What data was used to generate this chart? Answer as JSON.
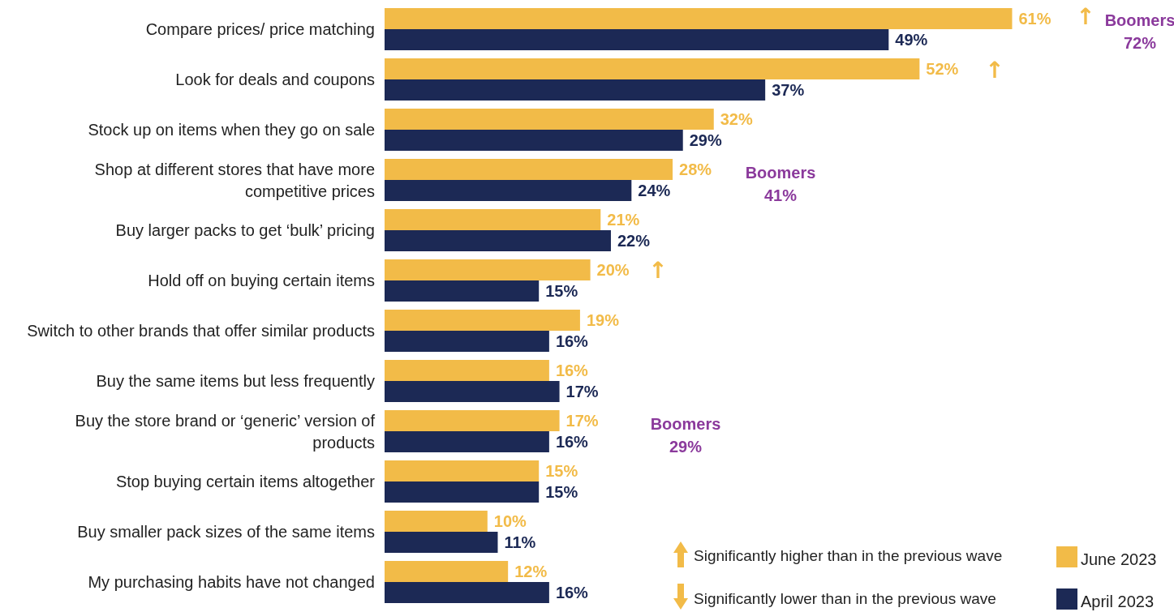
{
  "chart_data": {
    "type": "bar",
    "orientation": "horizontal",
    "legend": "bottom right",
    "categories": [
      "Compare prices/ price matching",
      "Look for deals and coupons",
      "Stock up on items when they go on sale",
      "Shop at different stores that have more competitive prices",
      "Buy larger packs to get ‘bulk’ pricing",
      "Hold off on buying certain items",
      "Switch to other brands that offer similar products",
      "Buy the same items but less frequently",
      "Buy the store brand or ‘generic’ version of products",
      "Stop buying certain items altogether",
      "Buy smaller pack sizes of the same items",
      "My purchasing habits have not changed"
    ],
    "series": [
      {
        "name": "June 2023",
        "color": "#f2bb48",
        "values": [
          61,
          52,
          32,
          28,
          21,
          20,
          19,
          16,
          17,
          15,
          10,
          12
        ],
        "value_labels": [
          "61%",
          "52%",
          "32%",
          "28%",
          "21%",
          "20%",
          "19%",
          "16%",
          "17%",
          "15%",
          "10%",
          "12%"
        ]
      },
      {
        "name": "April 2023",
        "color": "#1c2955",
        "values": [
          49,
          37,
          29,
          24,
          22,
          15,
          16,
          17,
          16,
          15,
          11,
          16
        ],
        "value_labels": [
          "49%",
          "37%",
          "29%",
          "24%",
          "22%",
          "15%",
          "16%",
          "17%",
          "16%",
          "15%",
          "11%",
          "16%"
        ]
      }
    ],
    "annotations": [
      "↑",
      "↑",
      "↑",
      "Boomers 72%",
      "Boomers 41%",
      "Boomers 29%",
      "Significantly higher than in the previous wave",
      "Significantly lower than in the previous wave"
    ]
  }
}
